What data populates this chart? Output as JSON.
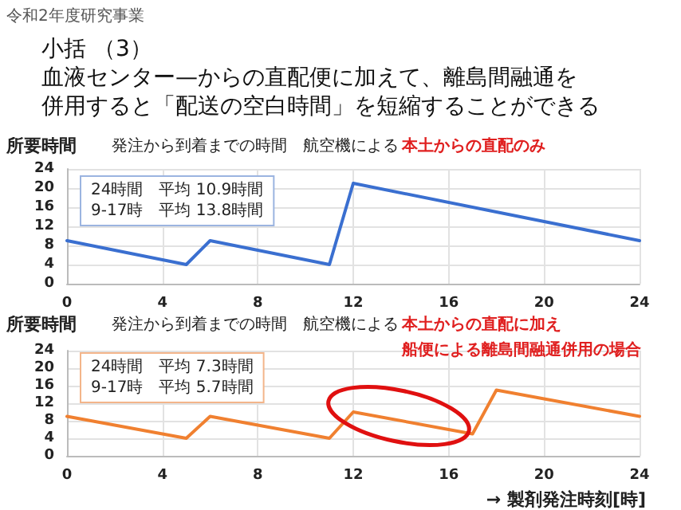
{
  "chart_data": [
    {
      "type": "line",
      "title": "発注から到着までの時間　航空機による",
      "subtitle": "本土からの直配のみ",
      "ylabel": "所要時間",
      "annotations": [
        "令和2年度研究事業",
        "小括 （3）",
        "血液センター—からの直配便に加えて、離島間融通を",
        "併用すると「配送の空白時間」を短縮することができる",
        "24時間　平均 10.9時間",
        "9-17時　平均 13.8時間"
      ],
      "series": [
        {
          "color": "#3a6fd0",
          "x": [
            0,
            5,
            6,
            11,
            12,
            24
          ],
          "values": [
            9,
            4,
            9,
            4,
            21,
            9
          ]
        }
      ],
      "xlim": [
        0,
        24
      ],
      "xticks": [
        0,
        4,
        8,
        12,
        16,
        20,
        24
      ],
      "ylim": [
        0,
        24
      ],
      "yticks": [
        0,
        4,
        8,
        12,
        16,
        20,
        24
      ],
      "grid": true,
      "marker": "none",
      "line_style": "solid"
    },
    {
      "type": "line",
      "title": "発注から到着までの時間　航空機による",
      "subtitle": "本土からの直配に加え",
      "ylabel": "所要時間",
      "xlabel": "→ 製剤発注時刻[時]",
      "annotations": [
        "船便による離島間融通併用の場合",
        "24時間　平均 7.3時間",
        "9-17時　平均 5.7時間"
      ],
      "series": [
        {
          "color": "#f08030",
          "x": [
            0,
            5,
            6,
            11,
            12,
            17,
            18,
            24
          ],
          "values": [
            9,
            4,
            9,
            4,
            10,
            5,
            15,
            9
          ]
        }
      ],
      "xlim": [
        0,
        24
      ],
      "xticks": [
        0,
        4,
        8,
        12,
        16,
        20,
        24
      ],
      "ylim": [
        0,
        24
      ],
      "yticks": [
        0,
        4,
        8,
        12,
        16,
        20,
        24
      ],
      "grid": true,
      "marker": "none",
      "line_style": "solid"
    }
  ]
}
